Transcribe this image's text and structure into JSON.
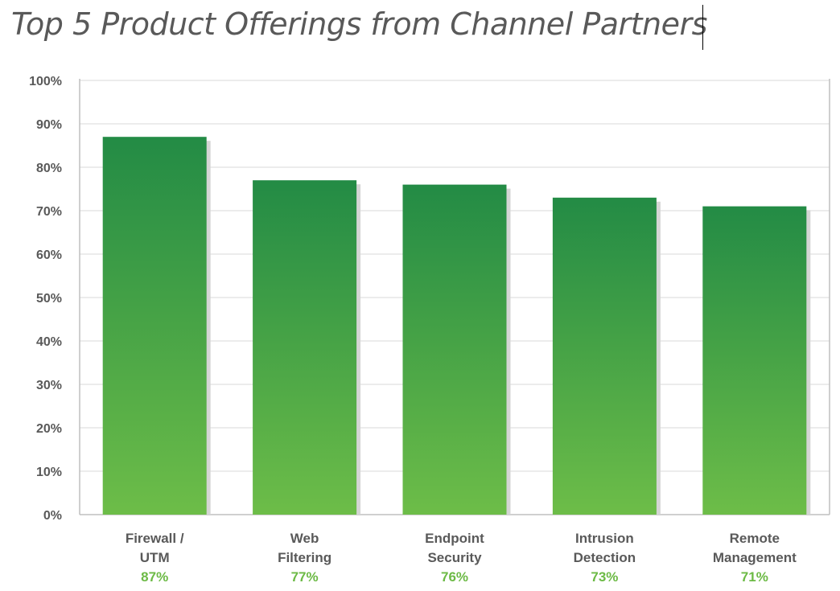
{
  "chart_data": {
    "type": "bar",
    "title": "Top 5 Product Offerings from Channel Partners",
    "categories": [
      [
        "Firewall /",
        "UTM"
      ],
      [
        "Web",
        "Filtering"
      ],
      [
        "Endpoint",
        "Security"
      ],
      [
        "Intrusion",
        "Detection"
      ],
      [
        "Remote",
        "Management"
      ]
    ],
    "values": [
      87,
      77,
      76,
      73,
      71
    ],
    "value_labels": [
      "87%",
      "77%",
      "76%",
      "73%",
      "71%"
    ],
    "ylim": [
      0,
      100
    ],
    "yticks": [
      0,
      10,
      20,
      30,
      40,
      50,
      60,
      70,
      80,
      90,
      100
    ],
    "ytick_labels": [
      "0%",
      "10%",
      "20%",
      "30%",
      "40%",
      "50%",
      "60%",
      "70%",
      "80%",
      "90%",
      "100%"
    ],
    "xlabel": "",
    "ylabel": "",
    "grid": true,
    "colors": {
      "bar_top": "#238b45",
      "bar_bottom": "#6dbd48",
      "bar_shadow": "#d5d5d5",
      "value_label": "#6cba45",
      "grid": "#e6e6e6",
      "axis": "#bfbfbf",
      "text": "#595959"
    }
  }
}
